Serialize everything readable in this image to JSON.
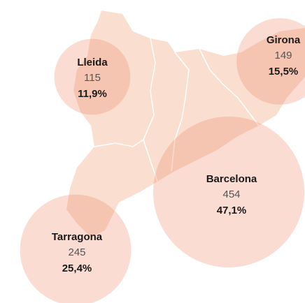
{
  "regions": [
    {
      "name": "Lleida",
      "count": 115,
      "share": "11,9%"
    },
    {
      "name": "Girona",
      "count": 149,
      "share": "15,5%"
    },
    {
      "name": "Barcelona",
      "count": 454,
      "share": "47,1%"
    },
    {
      "name": "Tarragona",
      "count": 245,
      "share": "25,4%"
    }
  ]
}
